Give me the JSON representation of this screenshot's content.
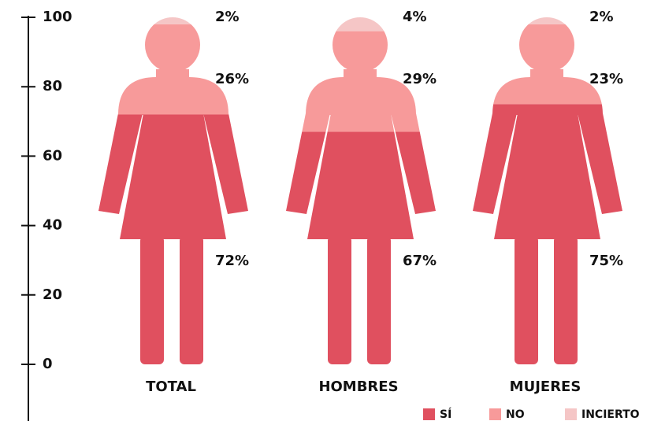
{
  "chart_data": {
    "type": "pictograph",
    "categories": [
      "TOTAL",
      "HOMBRES",
      "MUJERES"
    ],
    "series": [
      {
        "name": "SÍ",
        "color": "#e0505f",
        "values": [
          72,
          67,
          75
        ],
        "value_labels": [
          "72%",
          "67%",
          "75%"
        ]
      },
      {
        "name": "NO",
        "color": "#f79a9a",
        "values": [
          26,
          29,
          23
        ],
        "value_labels": [
          "26%",
          "29%",
          "23%"
        ]
      },
      {
        "name": "INCIERTO",
        "color": "#f5c6c6",
        "values": [
          2,
          4,
          2
        ],
        "value_labels": [
          "2%",
          "4%",
          "2%"
        ]
      }
    ],
    "ylim": [
      0,
      100
    ],
    "yticks": [
      0,
      20,
      40,
      60,
      80,
      100
    ],
    "stacked": true,
    "legend": "bottom-right"
  }
}
